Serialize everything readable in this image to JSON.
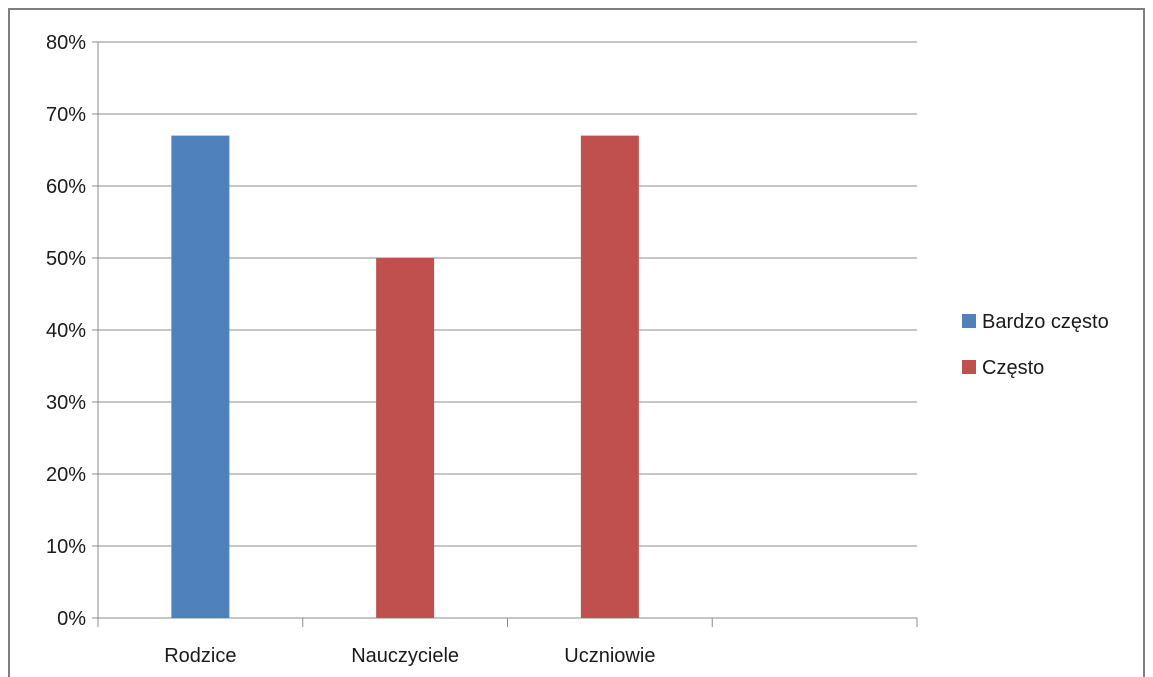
{
  "chart_data": {
    "type": "bar",
    "categories": [
      "Rodzice",
      "Nauczyciele",
      "Uczniowie"
    ],
    "series": [
      {
        "name": "Bardzo często",
        "color": "#4f81bd",
        "values": [
          0.67,
          null,
          null
        ]
      },
      {
        "name": "Często",
        "color": "#c0504d",
        "values": [
          null,
          0.5,
          0.67
        ]
      }
    ],
    "y_ticks": [
      "0%",
      "10%",
      "20%",
      "30%",
      "40%",
      "50%",
      "60%",
      "70%",
      "80%"
    ],
    "ylim": [
      0,
      0.8
    ],
    "grid": true,
    "legend_position": "right"
  }
}
